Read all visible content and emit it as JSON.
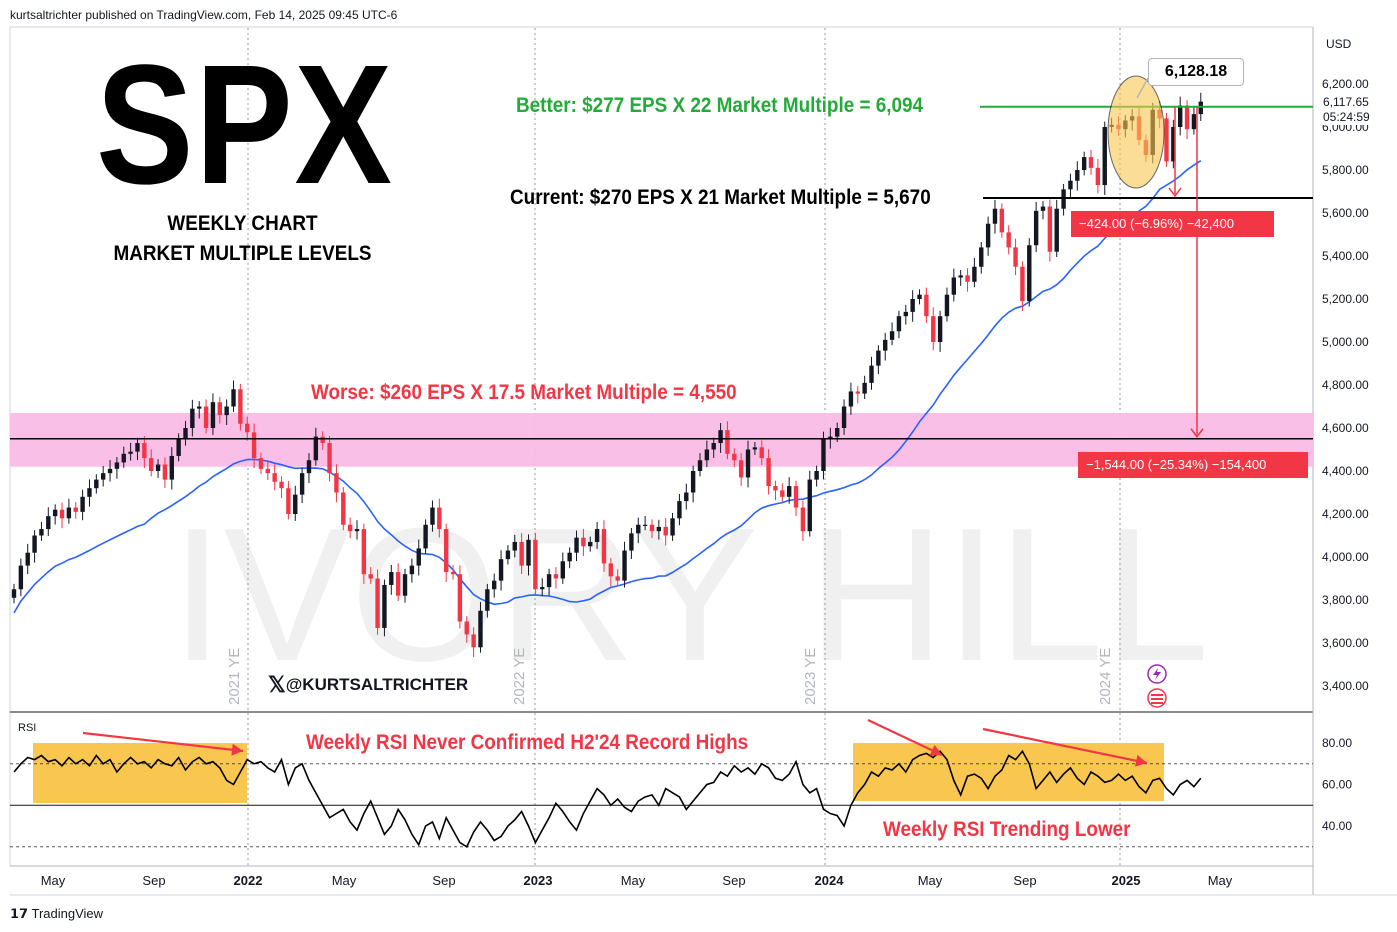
{
  "header": {
    "text": "kurtsaltrichter published on TradingView.com, Feb 14, 2025 09:45 UTC-6",
    "footer": "TradingView"
  },
  "title": {
    "main": "SPX",
    "line1": "WEEKLY CHART",
    "line2": "MARKET MULTIPLE LEVELS"
  },
  "watermark": {
    "handle": "@KURTSALTRICHTER",
    "brand": "IVORY HILL"
  },
  "annotations": {
    "better": "Better: $277 EPS X 22 Market Multiple = 6,094",
    "current": "Current: $270 EPS X 21 Market Multiple = 5,670",
    "worse": "Worse: $260 EPS X 17.5 Market Multiple = 4,550",
    "callout": "6,128.18",
    "measure_small": "−424.00 (−6.96%) −42,400",
    "measure_large": "−1,544.00 (−25.34%) −154,400",
    "rsi_top": "Weekly RSI Never Confirmed H2'24 Record Highs",
    "rsi_bottom": "Weekly RSI Trending Lower",
    "rsi_label": "RSI"
  },
  "colors": {
    "better": "#22ab38",
    "worse": "#f23645",
    "up_candle": "#131722",
    "down_candle": "#f23645",
    "ma_line": "#2962ff",
    "pink_zone": "#f9bce6",
    "rsi_box": "#f9c74f"
  },
  "chart_data": [
    {
      "type": "candlestick",
      "title": "SPX",
      "interval": "Weekly",
      "currency": "USD",
      "y_ticks": [
        "6,200.00",
        "6,000.00",
        "5,800.00",
        "5,600.00",
        "5,400.00",
        "5,200.00",
        "5,000.00",
        "4,800.00",
        "4,600.00",
        "4,400.00",
        "4,200.00",
        "4,000.00",
        "3,800.00",
        "3,600.00",
        "3,400.00"
      ],
      "ylim": [
        3300,
        6330
      ],
      "last_price": "6,117.65",
      "countdown": "05:24:59",
      "x_ticks": [
        "May",
        "Sep",
        "2022",
        "May",
        "Sep",
        "2023",
        "May",
        "Sep",
        "2024",
        "May",
        "Sep",
        "2025",
        "May"
      ],
      "year_end_labels": [
        "2021 YE",
        "2022 YE",
        "2023 YE",
        "2024 YE"
      ],
      "levels": [
        {
          "label": "Better",
          "value": 6094
        },
        {
          "label": "Current",
          "value": 5670
        },
        {
          "label": "Worse",
          "value": 4550
        }
      ],
      "zone": {
        "from": 4420,
        "to": 4670
      },
      "closes": [
        [
          0,
          3850
        ],
        [
          1,
          3960
        ],
        [
          2,
          4020
        ],
        [
          3,
          4100
        ],
        [
          4,
          4130
        ],
        [
          5,
          4190
        ],
        [
          6,
          4220
        ],
        [
          7,
          4180
        ],
        [
          8,
          4230
        ],
        [
          9,
          4210
        ],
        [
          10,
          4280
        ],
        [
          11,
          4320
        ],
        [
          12,
          4360
        ],
        [
          13,
          4390
        ],
        [
          14,
          4410
        ],
        [
          15,
          4440
        ],
        [
          16,
          4480
        ],
        [
          17,
          4490
        ],
        [
          18,
          4530
        ],
        [
          19,
          4460
        ],
        [
          20,
          4400
        ],
        [
          21,
          4430
        ],
        [
          22,
          4360
        ],
        [
          23,
          4470
        ],
        [
          24,
          4550
        ],
        [
          25,
          4600
        ],
        [
          26,
          4690
        ],
        [
          27,
          4700
        ],
        [
          28,
          4600
        ],
        [
          29,
          4720
        ],
        [
          30,
          4660
        ],
        [
          31,
          4700
        ],
        [
          32,
          4780
        ],
        [
          33,
          4620
        ],
        [
          34,
          4580
        ],
        [
          35,
          4460
        ],
        [
          36,
          4410
        ],
        [
          37,
          4390
        ],
        [
          38,
          4350
        ],
        [
          39,
          4320
        ],
        [
          40,
          4200
        ],
        [
          41,
          4290
        ],
        [
          42,
          4390
        ],
        [
          43,
          4450
        ],
        [
          44,
          4560
        ],
        [
          45,
          4530
        ],
        [
          46,
          4390
        ],
        [
          47,
          4300
        ],
        [
          48,
          4150
        ],
        [
          49,
          4120
        ],
        [
          50,
          4130
        ],
        [
          51,
          3920
        ],
        [
          52,
          3900
        ],
        [
          53,
          3670
        ],
        [
          54,
          3870
        ],
        [
          55,
          3930
        ],
        [
          56,
          3820
        ],
        [
          57,
          3920
        ],
        [
          58,
          3960
        ],
        [
          59,
          4040
        ],
        [
          60,
          4150
        ],
        [
          61,
          4230
        ],
        [
          62,
          4130
        ],
        [
          63,
          3930
        ],
        [
          64,
          3920
        ],
        [
          65,
          3700
        ],
        [
          66,
          3640
        ],
        [
          67,
          3580
        ],
        [
          68,
          3750
        ],
        [
          69,
          3850
        ],
        [
          70,
          3890
        ],
        [
          71,
          3990
        ],
        [
          72,
          4030
        ],
        [
          73,
          4070
        ],
        [
          74,
          3960
        ],
        [
          75,
          4080
        ],
        [
          76,
          3850
        ],
        [
          77,
          3860
        ],
        [
          78,
          3920
        ],
        [
          79,
          3900
        ],
        [
          80,
          3980
        ],
        [
          81,
          4020
        ],
        [
          82,
          4090
        ],
        [
          83,
          4050
        ],
        [
          84,
          4070
        ],
        [
          85,
          4130
        ],
        [
          86,
          3970
        ],
        [
          87,
          3910
        ],
        [
          88,
          3890
        ],
        [
          89,
          4030
        ],
        [
          90,
          4110
        ],
        [
          91,
          4150
        ],
        [
          92,
          4150
        ],
        [
          93,
          4120
        ],
        [
          94,
          4140
        ],
        [
          95,
          4100
        ],
        [
          96,
          4180
        ],
        [
          97,
          4260
        ],
        [
          98,
          4300
        ],
        [
          99,
          4400
        ],
        [
          100,
          4450
        ],
        [
          101,
          4500
        ],
        [
          102,
          4530
        ],
        [
          103,
          4590
        ],
        [
          104,
          4480
        ],
        [
          105,
          4450
        ],
        [
          106,
          4370
        ],
        [
          107,
          4500
        ],
        [
          108,
          4510
        ],
        [
          109,
          4460
        ],
        [
          110,
          4330
        ],
        [
          111,
          4310
        ],
        [
          112,
          4280
        ],
        [
          113,
          4330
        ],
        [
          114,
          4230
        ],
        [
          115,
          4120
        ],
        [
          116,
          4360
        ],
        [
          117,
          4400
        ],
        [
          118,
          4550
        ],
        [
          119,
          4560
        ],
        [
          120,
          4600
        ],
        [
          121,
          4700
        ],
        [
          122,
          4770
        ],
        [
          123,
          4760
        ],
        [
          124,
          4810
        ],
        [
          125,
          4890
        ],
        [
          126,
          4960
        ],
        [
          127,
          5010
        ],
        [
          128,
          5050
        ],
        [
          129,
          5120
        ],
        [
          130,
          5140
        ],
        [
          131,
          5200
        ],
        [
          132,
          5220
        ],
        [
          133,
          5120
        ],
        [
          134,
          5000
        ],
        [
          135,
          5120
        ],
        [
          136,
          5220
        ],
        [
          137,
          5300
        ],
        [
          138,
          5310
        ],
        [
          139,
          5280
        ],
        [
          140,
          5350
        ],
        [
          141,
          5440
        ],
        [
          142,
          5550
        ],
        [
          143,
          5620
        ],
        [
          144,
          5510
        ],
        [
          145,
          5440
        ],
        [
          146,
          5350
        ],
        [
          147,
          5190
        ],
        [
          148,
          5450
        ],
        [
          149,
          5610
        ],
        [
          150,
          5630
        ],
        [
          151,
          5420
        ],
        [
          152,
          5620
        ],
        [
          153,
          5710
        ],
        [
          154,
          5750
        ],
        [
          155,
          5800
        ],
        [
          156,
          5860
        ],
        [
          157,
          5810
        ],
        [
          158,
          5730
        ],
        [
          159,
          6000
        ],
        [
          160,
          6010
        ],
        [
          161,
          5990
        ],
        [
          162,
          6030
        ],
        [
          163,
          6050
        ],
        [
          164,
          5940
        ],
        [
          165,
          5870
        ],
        [
          166,
          6080
        ],
        [
          167,
          6040
        ],
        [
          168,
          5840
        ],
        [
          169,
          6000
        ],
        [
          170,
          6100
        ],
        [
          171,
          5990
        ],
        [
          172,
          6060
        ],
        [
          173,
          6118
        ]
      ]
    },
    {
      "type": "line",
      "title": "RSI",
      "y_ticks": [
        "80.00",
        "60.00",
        "40.00"
      ],
      "ylim": [
        20,
        90
      ],
      "levels": [
        70,
        50,
        30
      ],
      "values": [
        66,
        70,
        73,
        72,
        74,
        71,
        72,
        69,
        73,
        70,
        72,
        69,
        74,
        70,
        72,
        66,
        70,
        73,
        70,
        71,
        68,
        72,
        70,
        69,
        73,
        67,
        71,
        73,
        70,
        71,
        68,
        62,
        60,
        66,
        72,
        70,
        71,
        68,
        66,
        72,
        60,
        68,
        70,
        62,
        56,
        50,
        44,
        46,
        48,
        42,
        38,
        46,
        52,
        44,
        36,
        40,
        48,
        43,
        36,
        31,
        40,
        42,
        34,
        44,
        38,
        32,
        30,
        37,
        42,
        38,
        33,
        35,
        40,
        43,
        47,
        40,
        32,
        38,
        44,
        51,
        47,
        42,
        38,
        46,
        52,
        58,
        55,
        50,
        53,
        49,
        47,
        52,
        54,
        55,
        50,
        58,
        56,
        54,
        48,
        52,
        56,
        60,
        61,
        66,
        64,
        69,
        66,
        68,
        65,
        70,
        68,
        63,
        62,
        65,
        71,
        60,
        56,
        58,
        48,
        46,
        45,
        40,
        50,
        56,
        60,
        66,
        64,
        68,
        67,
        70,
        66,
        72,
        74,
        75,
        73,
        76,
        72,
        62,
        55,
        64,
        65,
        63,
        58,
        64,
        67,
        74,
        72,
        76,
        70,
        58,
        62,
        66,
        61,
        65,
        68,
        63,
        60,
        66,
        64,
        61,
        62,
        65,
        62,
        64,
        59,
        56,
        62,
        63,
        58,
        55,
        60,
        62,
        59,
        63
      ]
    }
  ]
}
